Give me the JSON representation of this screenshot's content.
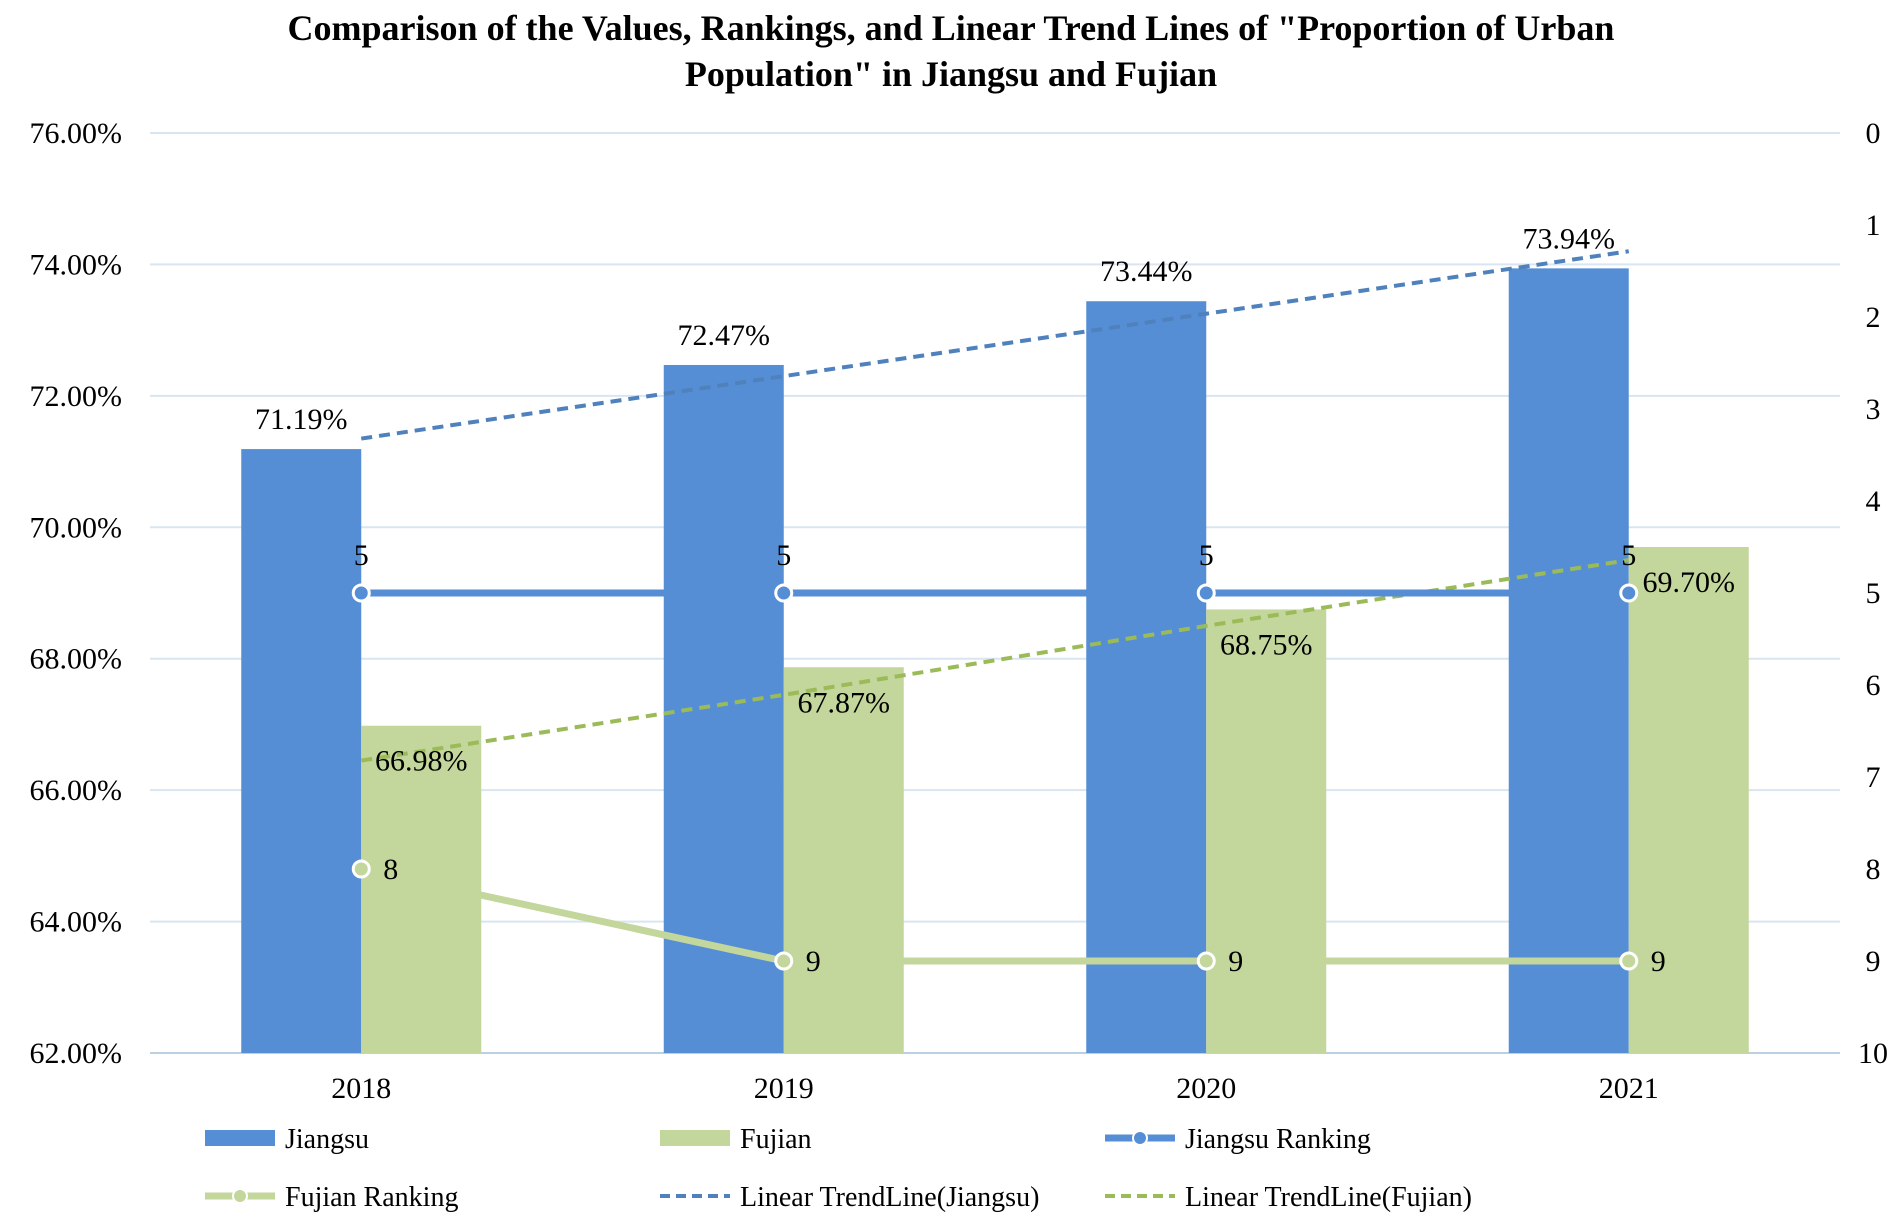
{
  "chart_data": {
    "type": "bar",
    "title_lines": [
      "Comparison of the Values, Rankings, and Linear Trend Lines of \"Proportion of Urban",
      "Population\" in Jiangsu and Fujian"
    ],
    "categories": [
      "2018",
      "2019",
      "2020",
      "2021"
    ],
    "y_left": {
      "min": 62,
      "max": 76,
      "step": 2,
      "tick_labels": [
        "62.00%",
        "64.00%",
        "66.00%",
        "68.00%",
        "70.00%",
        "72.00%",
        "74.00%",
        "76.00%"
      ]
    },
    "y_right": {
      "min": 0,
      "max": 10,
      "reversed": true,
      "tick_labels": [
        "0",
        "1",
        "2",
        "3",
        "4",
        "5",
        "6",
        "7",
        "8",
        "9",
        "10"
      ]
    },
    "grid": true,
    "series": [
      {
        "name": "Jiangsu",
        "kind": "bar",
        "axis": "left",
        "color": "#558ED5",
        "values": [
          71.19,
          72.47,
          73.44,
          73.94
        ],
        "labels": [
          "71.19%",
          "72.47%",
          "73.44%",
          "73.94%"
        ]
      },
      {
        "name": "Fujian",
        "kind": "bar",
        "axis": "left",
        "color": "#C3D69B",
        "values": [
          66.98,
          67.87,
          68.75,
          69.7
        ],
        "labels": [
          "66.98%",
          "67.87%",
          "68.75%",
          "69.70%"
        ]
      },
      {
        "name": "Jiangsu Ranking",
        "kind": "line",
        "axis": "right",
        "color": "#558ED5",
        "values": [
          5,
          5,
          5,
          5
        ],
        "labels": [
          "5",
          "5",
          "5",
          "5"
        ]
      },
      {
        "name": "Fujian Ranking",
        "kind": "line",
        "axis": "right",
        "color": "#C3D69B",
        "values": [
          8,
          9,
          9,
          9
        ],
        "labels": [
          "8",
          "9",
          "9",
          "9"
        ]
      },
      {
        "name": "Linear TrendLine(Jiangsu)",
        "kind": "trend",
        "axis": "left",
        "color": "#4F81BD",
        "values": [
          71.35,
          72.3,
          73.25,
          74.2
        ]
      },
      {
        "name": "Linear TrendLine(Fujian)",
        "kind": "trend",
        "axis": "left",
        "color": "#9BBB59",
        "values": [
          66.45,
          67.45,
          68.5,
          69.5
        ]
      }
    ],
    "legend_position": "bottom"
  }
}
